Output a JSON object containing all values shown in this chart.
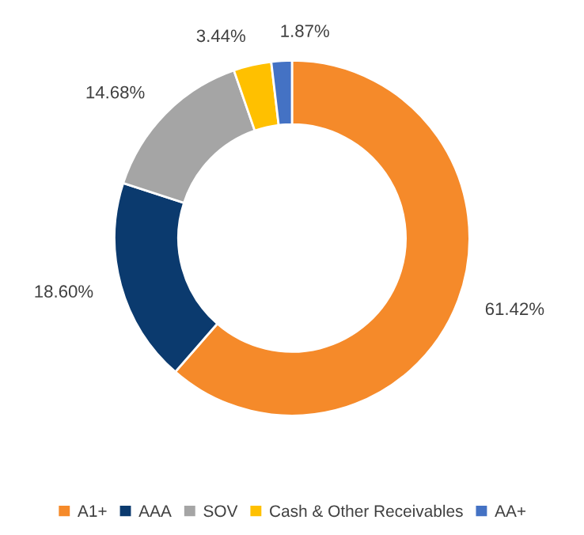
{
  "chart_data": {
    "type": "donut",
    "categories": [
      "A1+",
      "AAA",
      "SOV",
      "Cash & Other Receivables",
      "AA+"
    ],
    "values": [
      61.42,
      18.6,
      14.68,
      3.44,
      1.87
    ],
    "value_labels": [
      "61.42%",
      "18.60%",
      "14.68%",
      "3.44%",
      "1.87%"
    ],
    "colors": [
      "#f58a2a",
      "#0b3a6e",
      "#a5a5a5",
      "#ffc000",
      "#4472c4"
    ],
    "legend": "bottom"
  }
}
